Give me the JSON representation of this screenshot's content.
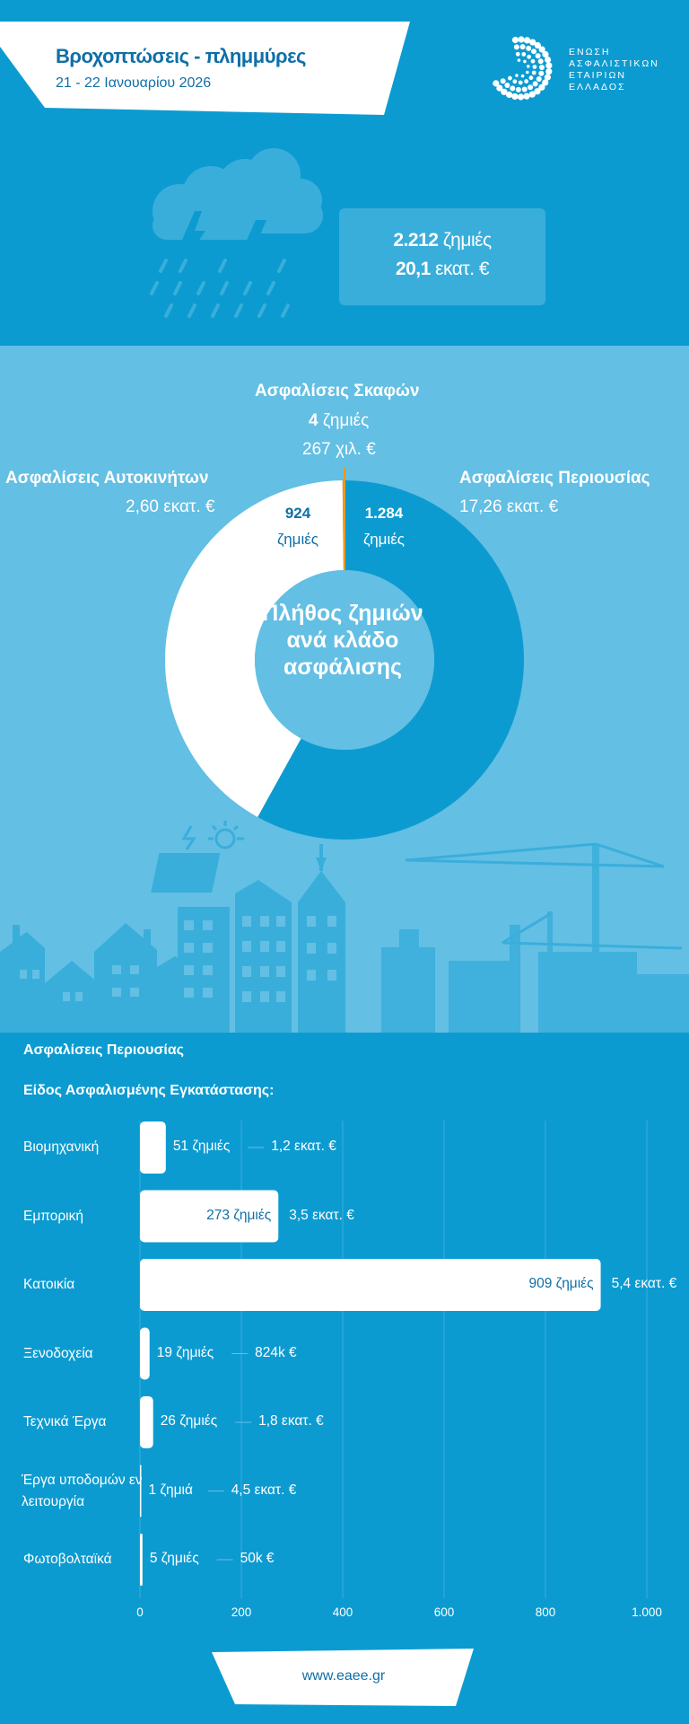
{
  "header": {
    "title": "Βροχοπτώσεις - πλημμύρες",
    "date": "21 - 22 Ιανουαρίου 2026",
    "logo_lines": [
      "ΕΝΩΣΗ",
      "ΑΣΦΑΛΙΣΤΙΚΩΝ",
      "ΕΤΑΙΡΙΩΝ",
      "ΕΛΛΑΔΟΣ"
    ]
  },
  "summary": {
    "claims_value": "2.212",
    "claims_unit": "ζημιές",
    "amount_value": "20,1",
    "amount_unit": "εκατ. €"
  },
  "colors": {
    "dark_blue": "#0c9bd1",
    "light_blue": "#63bfe4",
    "text_blue": "#0f6fa8",
    "orange": "#e89a1c",
    "white": "#ffffff"
  },
  "chart_data": [
    {
      "type": "pie",
      "title": "Πλήθος ζημιών ανά κλάδο ασφάλισης",
      "slices": [
        {
          "name": "Ασφαλίσεις Περιουσίας",
          "claims": 1284,
          "claims_label": "1.284",
          "unit": "ζημιές",
          "amount": "17,26 εκατ. €",
          "color": "#0c9bd1"
        },
        {
          "name": "Ασφαλίσεις Αυτοκινήτων",
          "claims": 924,
          "claims_label": "924",
          "unit": "ζημιές",
          "amount": "2,60 εκατ. €",
          "color": "#ffffff"
        },
        {
          "name": "Ασφαλίσεις Σκαφών",
          "claims": 4,
          "claims_label": "4",
          "unit": "ζημιές",
          "amount": "267 χιλ. €",
          "color": "#e89a1c"
        }
      ]
    },
    {
      "type": "bar",
      "orientation": "horizontal",
      "title": "Ασφαλίσεις Περιουσίας",
      "subtitle": "Είδος Ασφαλισμένης Εγκατάστασης:",
      "categories": [
        "Βιομηχανική",
        "Εμπορική",
        "Κατοικία",
        "Ξενοδοχεία",
        "Τεχνικά Έργα",
        "Έργα υποδομών εν λειτουργία",
        "Φωτοβολταϊκά"
      ],
      "values": [
        51,
        273,
        909,
        19,
        26,
        1,
        5
      ],
      "value_labels": [
        "51 ζημιές",
        "273 ζημιές",
        "909 ζημιές",
        "19 ζημιές",
        "26 ζημιές",
        "1 ζημιά",
        "5 ζημιές"
      ],
      "amount_labels": [
        "1,2 εκατ. €",
        "3,5 εκατ. €",
        "5,4 εκατ. €",
        "824k €",
        "1,8 εκατ. €",
        "4,5 εκατ. €",
        "50k €"
      ],
      "xlim": [
        0,
        1000
      ],
      "ticks": [
        0,
        200,
        400,
        600,
        800,
        1000
      ],
      "tick_labels": [
        "0",
        "200",
        "400",
        "600",
        "800",
        "1.000"
      ],
      "grid": true
    }
  ],
  "footer": {
    "url": "www.eaee.gr"
  }
}
